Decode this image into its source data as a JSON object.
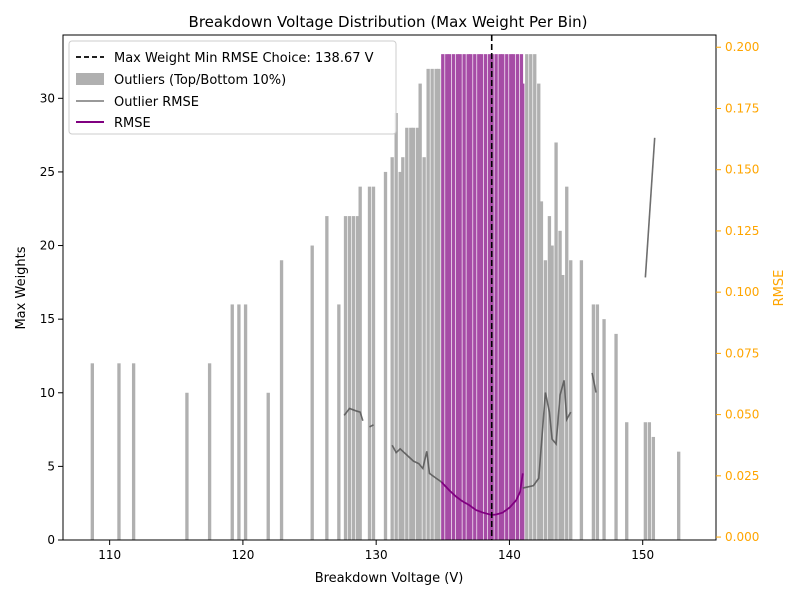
{
  "chart_data": {
    "type": "bar",
    "title": "Breakdown Voltage Distribution (Max Weight Per Bin)",
    "xlabel": "Breakdown Voltage (V)",
    "ylabel": "Max Weights",
    "y2label": "RMSE",
    "xlim": [
      106.5,
      155.5
    ],
    "ylim": [
      0,
      34.3
    ],
    "y2lim": [
      -0.0012,
      0.205
    ],
    "x_ticks": [
      110,
      120,
      130,
      140,
      150
    ],
    "y_ticks": [
      0,
      5,
      10,
      15,
      20,
      25,
      30
    ],
    "y2_ticks": [
      0.0,
      0.025,
      0.05,
      0.075,
      0.1,
      0.125,
      0.15,
      0.175,
      0.2
    ],
    "x_tick_labels": [
      "110",
      "120",
      "130",
      "140",
      "150"
    ],
    "y_tick_labels": [
      "0",
      "5",
      "10",
      "15",
      "20",
      "25",
      "30"
    ],
    "y2_tick_labels": [
      "0.000",
      "0.025",
      "0.050",
      "0.075",
      "0.100",
      "0.125",
      "0.150",
      "0.175",
      "0.200"
    ],
    "colors": {
      "outlier_bar": "#b0b0b0",
      "main_bar": "#a64ca6",
      "outlier_rmse": "#555555",
      "rmse": "#800080",
      "vline": "#000000",
      "y2_axis": "#ffa500"
    },
    "vline": {
      "x": 138.67,
      "label": "Max Weight Min RMSE Choice: 138.67 V"
    },
    "legend": {
      "placement": "upper left",
      "entries": [
        {
          "label": "Max Weight Min RMSE Choice: 138.67 V",
          "style": "dashed-line"
        },
        {
          "label": "Outliers (Top/Bottom 10%)",
          "style": "patch"
        },
        {
          "label": "Outlier RMSE",
          "style": "line"
        },
        {
          "label": "RMSE",
          "style": "line"
        }
      ]
    },
    "series": [
      {
        "name": "Outliers (Top/Bottom 10%)",
        "kind": "bar",
        "bar_width": 0.25,
        "points": [
          [
            108.7,
            12
          ],
          [
            110.7,
            12
          ],
          [
            111.8,
            12
          ],
          [
            115.8,
            10
          ],
          [
            117.5,
            12
          ],
          [
            119.2,
            16
          ],
          [
            119.7,
            16
          ],
          [
            120.2,
            16
          ],
          [
            121.9,
            10
          ],
          [
            122.9,
            19
          ],
          [
            125.2,
            20
          ],
          [
            126.3,
            22
          ],
          [
            127.2,
            16
          ],
          [
            127.7,
            22
          ],
          [
            128.0,
            22
          ],
          [
            128.3,
            22
          ],
          [
            128.6,
            22
          ],
          [
            128.8,
            24
          ],
          [
            129.5,
            24
          ],
          [
            129.8,
            24
          ],
          [
            130.7,
            25
          ],
          [
            131.2,
            26
          ],
          [
            131.5,
            29
          ],
          [
            131.8,
            25
          ],
          [
            132.0,
            26
          ],
          [
            132.3,
            28
          ],
          [
            132.6,
            28
          ],
          [
            132.8,
            28
          ],
          [
            133.1,
            28
          ],
          [
            133.3,
            31
          ],
          [
            133.6,
            26
          ],
          [
            133.9,
            32
          ],
          [
            134.2,
            32
          ],
          [
            134.5,
            32
          ],
          [
            134.7,
            32
          ],
          [
            141.3,
            33
          ],
          [
            141.6,
            33
          ],
          [
            141.9,
            33
          ],
          [
            142.2,
            31
          ],
          [
            142.4,
            23
          ],
          [
            142.7,
            19
          ],
          [
            143.0,
            22
          ],
          [
            143.2,
            20
          ],
          [
            143.5,
            27
          ],
          [
            143.8,
            21
          ],
          [
            144.0,
            18
          ],
          [
            144.3,
            24
          ],
          [
            144.6,
            19
          ],
          [
            145.4,
            19
          ],
          [
            146.3,
            16
          ],
          [
            146.6,
            16
          ],
          [
            147.1,
            15
          ],
          [
            148.0,
            14
          ],
          [
            148.8,
            8
          ],
          [
            150.2,
            8
          ],
          [
            150.5,
            8
          ],
          [
            150.8,
            7
          ],
          [
            152.7,
            6
          ]
        ]
      },
      {
        "name": "",
        "kind": "bar",
        "bar_width": 0.25,
        "points": [
          [
            135.0,
            33
          ],
          [
            135.3,
            33
          ],
          [
            135.5,
            33
          ],
          [
            135.8,
            33
          ],
          [
            136.1,
            33
          ],
          [
            136.3,
            33
          ],
          [
            136.6,
            33
          ],
          [
            136.9,
            33
          ],
          [
            137.1,
            33
          ],
          [
            137.4,
            33
          ],
          [
            137.7,
            33
          ],
          [
            137.9,
            33
          ],
          [
            138.2,
            33
          ],
          [
            138.5,
            33
          ],
          [
            138.7,
            33
          ],
          [
            139.0,
            33
          ],
          [
            139.3,
            33
          ],
          [
            139.5,
            33
          ],
          [
            139.8,
            33
          ],
          [
            140.1,
            33
          ],
          [
            140.3,
            33
          ],
          [
            140.6,
            33
          ],
          [
            140.9,
            33
          ],
          [
            141.0,
            31
          ]
        ]
      },
      {
        "name": "Outlier RMSE",
        "kind": "line",
        "axis": "right",
        "segments": [
          [
            [
              127.6,
              0.0497
            ],
            [
              128.0,
              0.0525
            ],
            [
              128.5,
              0.0515
            ],
            [
              128.8,
              0.051
            ],
            [
              129.0,
              0.0475
            ]
          ],
          [
            [
              129.5,
              0.045
            ],
            [
              129.8,
              0.0458
            ]
          ],
          [
            [
              131.2,
              0.0375
            ],
            [
              131.5,
              0.0345
            ],
            [
              131.8,
              0.036
            ],
            [
              132.3,
              0.0335
            ],
            [
              132.8,
              0.031
            ],
            [
              133.2,
              0.03
            ],
            [
              133.5,
              0.028
            ],
            [
              133.8,
              0.035
            ],
            [
              134.0,
              0.026
            ],
            [
              134.5,
              0.024
            ],
            [
              134.9,
              0.0225
            ]
          ],
          [
            [
              141.0,
              0.02
            ],
            [
              141.8,
              0.021
            ],
            [
              142.2,
              0.024
            ],
            [
              142.5,
              0.045
            ],
            [
              142.7,
              0.059
            ],
            [
              143.0,
              0.051
            ],
            [
              143.2,
              0.04
            ],
            [
              143.5,
              0.038
            ],
            [
              143.8,
              0.058
            ],
            [
              144.1,
              0.064
            ],
            [
              144.3,
              0.048
            ],
            [
              144.6,
              0.051
            ]
          ],
          [
            [
              146.2,
              0.067
            ],
            [
              146.5,
              0.059
            ]
          ],
          [
            [
              150.2,
              0.106
            ],
            [
              150.9,
              0.163
            ]
          ]
        ]
      },
      {
        "name": "RMSE",
        "kind": "line",
        "axis": "right",
        "points": [
          [
            134.9,
            0.0225
          ],
          [
            135.5,
            0.019
          ],
          [
            136.0,
            0.0165
          ],
          [
            136.5,
            0.0145
          ],
          [
            137.0,
            0.013
          ],
          [
            137.5,
            0.011
          ],
          [
            138.0,
            0.01
          ],
          [
            138.67,
            0.009
          ],
          [
            139.0,
            0.0092
          ],
          [
            139.5,
            0.01
          ],
          [
            140.0,
            0.012
          ],
          [
            140.5,
            0.015
          ],
          [
            140.8,
            0.0185
          ],
          [
            141.0,
            0.026
          ]
        ]
      }
    ]
  }
}
